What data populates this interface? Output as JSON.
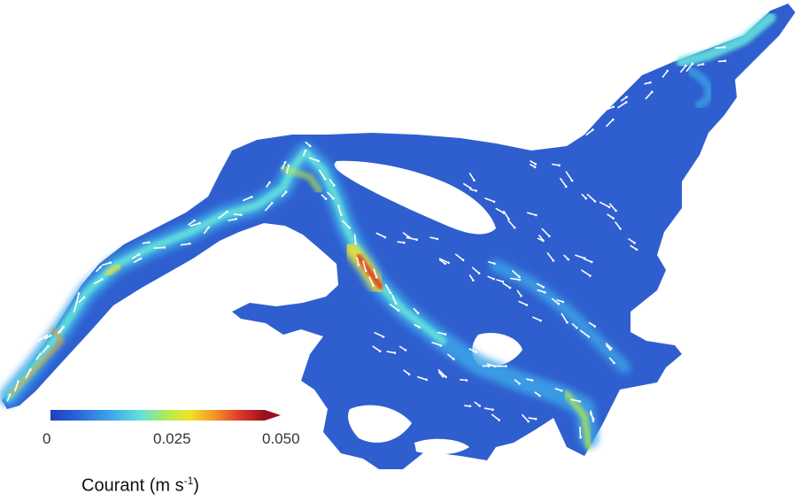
{
  "colorbar": {
    "ticks": [
      "0",
      "0.025",
      "0.050"
    ],
    "title_main": "Courant  (m s",
    "title_exp": "-1",
    "title_close": ")",
    "colors": [
      "#1f3fbf",
      "#2a62d8",
      "#3ea6e8",
      "#63e0dc",
      "#b7eb4a",
      "#f0e22c",
      "#f29a24",
      "#df3a2a",
      "#9b0f1e"
    ]
  },
  "map": {
    "water_color": "#2f5fcf",
    "arrow_color": "#ffffff"
  }
}
